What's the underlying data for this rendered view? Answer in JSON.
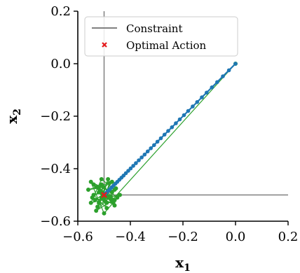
{
  "chart_data": {
    "type": "scatter",
    "xlabel": "x",
    "xlabel_sub": "1",
    "ylabel": "x",
    "ylabel_sub": "2",
    "xlim": [
      -0.6,
      0.2
    ],
    "ylim": [
      -0.6,
      0.2
    ],
    "x_ticks": [
      -0.6,
      -0.4,
      -0.2,
      0.0,
      0.2
    ],
    "y_ticks": [
      -0.6,
      -0.4,
      -0.2,
      0.0,
      0.2
    ],
    "x_tick_labels": [
      "−0.6",
      "−0.4",
      "−0.2",
      "0.0",
      "0.2"
    ],
    "y_tick_labels": [
      "−0.6",
      "−0.4",
      "−0.2",
      "0.0",
      "0.2"
    ],
    "grid": false,
    "legend": {
      "placement": "top-right",
      "entries": [
        {
          "label": "Constraint",
          "marker": "line",
          "color": "#808080"
        },
        {
          "label": "Optimal Action",
          "marker": "x",
          "color": "#e41a1c"
        }
      ]
    },
    "constraint": {
      "color": "#808080",
      "vertical_x": -0.5,
      "horizontal_y": -0.5
    },
    "optimal_action": {
      "x": -0.5,
      "y": -0.5,
      "color": "#e41a1c"
    },
    "series": [
      {
        "color": "#1f77b4",
        "points": [
          [
            0.0,
            0.0
          ],
          [
            -0.025,
            -0.025
          ],
          [
            -0.048,
            -0.048
          ],
          [
            -0.07,
            -0.07
          ],
          [
            -0.09,
            -0.09
          ],
          [
            -0.11,
            -0.11
          ],
          [
            -0.128,
            -0.128
          ],
          [
            -0.146,
            -0.146
          ],
          [
            -0.163,
            -0.163
          ],
          [
            -0.18,
            -0.18
          ],
          [
            -0.196,
            -0.196
          ],
          [
            -0.212,
            -0.212
          ],
          [
            -0.227,
            -0.227
          ],
          [
            -0.242,
            -0.242
          ],
          [
            -0.256,
            -0.256
          ],
          [
            -0.27,
            -0.27
          ],
          [
            -0.284,
            -0.284
          ],
          [
            -0.297,
            -0.297
          ],
          [
            -0.31,
            -0.31
          ],
          [
            -0.322,
            -0.322
          ],
          [
            -0.334,
            -0.334
          ],
          [
            -0.346,
            -0.346
          ],
          [
            -0.357,
            -0.357
          ],
          [
            -0.368,
            -0.368
          ],
          [
            -0.379,
            -0.379
          ],
          [
            -0.389,
            -0.389
          ],
          [
            -0.399,
            -0.399
          ],
          [
            -0.408,
            -0.408
          ],
          [
            -0.417,
            -0.417
          ],
          [
            -0.426,
            -0.426
          ],
          [
            -0.434,
            -0.434
          ],
          [
            -0.442,
            -0.442
          ],
          [
            -0.45,
            -0.45
          ],
          [
            -0.457,
            -0.457
          ],
          [
            -0.464,
            -0.464
          ],
          [
            -0.471,
            -0.471
          ],
          [
            -0.477,
            -0.477
          ],
          [
            -0.483,
            -0.483
          ],
          [
            -0.488,
            -0.488
          ],
          [
            -0.493,
            -0.493
          ]
        ]
      },
      {
        "color": "#2ca02c",
        "points": [
          [
            0.0,
            0.0
          ],
          [
            -0.47,
            -0.52
          ],
          [
            -0.52,
            -0.47
          ],
          [
            -0.49,
            -0.55
          ],
          [
            -0.54,
            -0.5
          ],
          [
            -0.46,
            -0.48
          ],
          [
            -0.51,
            -0.44
          ],
          [
            -0.55,
            -0.53
          ],
          [
            -0.48,
            -0.51
          ],
          [
            -0.53,
            -0.56
          ],
          [
            -0.45,
            -0.51
          ],
          [
            -0.5,
            -0.47
          ],
          [
            -0.56,
            -0.48
          ],
          [
            -0.47,
            -0.45
          ],
          [
            -0.52,
            -0.53
          ],
          [
            -0.49,
            -0.5
          ],
          [
            -0.54,
            -0.46
          ],
          [
            -0.46,
            -0.54
          ],
          [
            -0.51,
            -0.51
          ],
          [
            -0.48,
            -0.48
          ],
          [
            -0.535,
            -0.52
          ],
          [
            -0.44,
            -0.5
          ],
          [
            -0.5,
            -0.57
          ],
          [
            -0.55,
            -0.45
          ],
          [
            -0.47,
            -0.49
          ],
          [
            -0.52,
            -0.49
          ],
          [
            -0.49,
            -0.53
          ],
          [
            -0.53,
            -0.47
          ],
          [
            -0.46,
            -0.52
          ],
          [
            -0.51,
            -0.46
          ],
          [
            -0.5,
            -0.52
          ],
          [
            -0.48,
            -0.455
          ],
          [
            -0.545,
            -0.51
          ],
          [
            -0.465,
            -0.53
          ],
          [
            -0.515,
            -0.485
          ],
          [
            -0.475,
            -0.505
          ],
          [
            -0.525,
            -0.545
          ],
          [
            -0.485,
            -0.44
          ],
          [
            -0.505,
            -0.505
          ],
          [
            -0.455,
            -0.475
          ]
        ]
      }
    ]
  }
}
